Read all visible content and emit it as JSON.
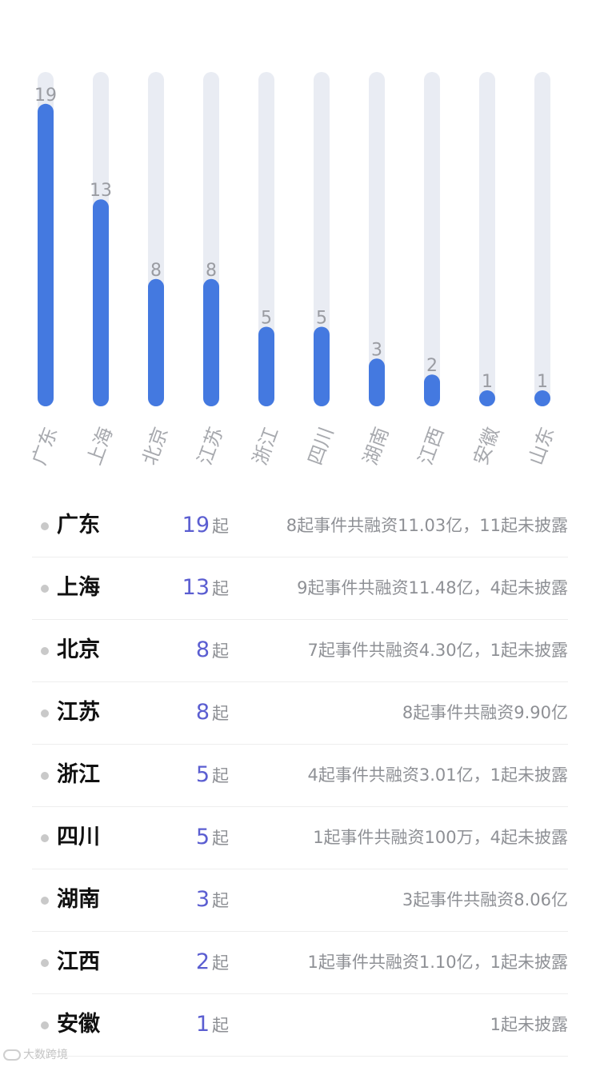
{
  "chart_data": {
    "type": "bar",
    "categories": [
      "广东",
      "上海",
      "北京",
      "江苏",
      "浙江",
      "四川",
      "湖南",
      "江西",
      "安徽",
      "山东"
    ],
    "values": [
      19,
      13,
      8,
      8,
      5,
      5,
      3,
      2,
      1,
      1
    ],
    "ylim": [
      0,
      21
    ],
    "title": "",
    "xlabel": "",
    "ylabel": "",
    "colors": {
      "bar": "#4479e0",
      "track": "#e9ecf3",
      "value_label": "#9a9ca2",
      "category_label": "#a7a9ae"
    }
  },
  "list": {
    "unit": "起",
    "accent_color": "#5b5ed1",
    "rows": [
      {
        "province": "广东",
        "count": "19",
        "desc": "8起事件共融资11.03亿，11起未披露"
      },
      {
        "province": "上海",
        "count": "13",
        "desc": "9起事件共融资11.48亿，4起未披露"
      },
      {
        "province": "北京",
        "count": "8",
        "desc": "7起事件共融资4.30亿，1起未披露"
      },
      {
        "province": "江苏",
        "count": "8",
        "desc": "8起事件共融资9.90亿"
      },
      {
        "province": "浙江",
        "count": "5",
        "desc": "4起事件共融资3.01亿，1起未披露"
      },
      {
        "province": "四川",
        "count": "5",
        "desc": "1起事件共融资100万，4起未披露"
      },
      {
        "province": "湖南",
        "count": "3",
        "desc": "3起事件共融资8.06亿"
      },
      {
        "province": "江西",
        "count": "2",
        "desc": "1起事件共融资1.10亿，1起未披露"
      },
      {
        "province": "安徽",
        "count": "1",
        "desc": "1起未披露"
      }
    ]
  },
  "watermark": {
    "text": "大数跨境",
    "icon": "loop-logo-icon"
  }
}
